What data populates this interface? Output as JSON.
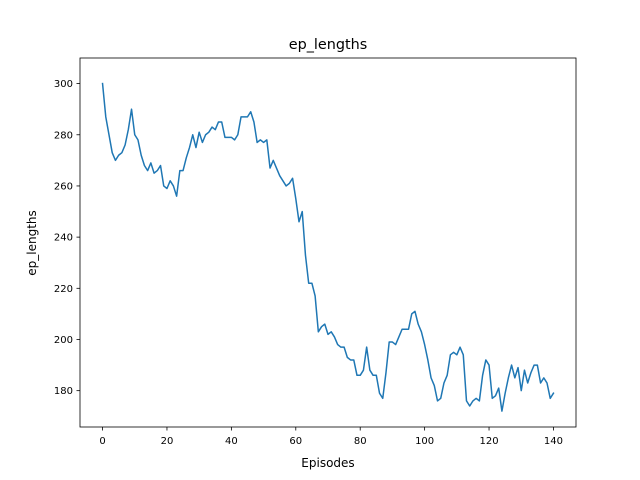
{
  "chart_data": {
    "type": "line",
    "title": "ep_lengths",
    "xlabel": "Episodes",
    "ylabel": "ep_lengths",
    "xlim": [
      -7,
      147
    ],
    "ylim": [
      165.8,
      310
    ],
    "xticks": [
      0,
      20,
      40,
      60,
      80,
      100,
      120,
      140
    ],
    "yticks": [
      180,
      200,
      220,
      240,
      260,
      280,
      300
    ],
    "grid": false,
    "series": [
      {
        "color": "#1f77b4",
        "x": [
          0,
          1,
          2,
          3,
          4,
          5,
          6,
          7,
          8,
          9,
          10,
          11,
          12,
          13,
          14,
          15,
          16,
          17,
          18,
          19,
          20,
          21,
          22,
          23,
          24,
          25,
          26,
          27,
          28,
          29,
          30,
          31,
          32,
          33,
          34,
          35,
          36,
          37,
          38,
          39,
          40,
          41,
          42,
          43,
          44,
          45,
          46,
          47,
          48,
          49,
          50,
          51,
          52,
          53,
          54,
          55,
          56,
          57,
          58,
          59,
          60,
          61,
          62,
          63,
          64,
          65,
          66,
          67,
          68,
          69,
          70,
          71,
          72,
          73,
          74,
          75,
          76,
          77,
          78,
          79,
          80,
          81,
          82,
          83,
          84,
          85,
          86,
          87,
          88,
          89,
          90,
          91,
          92,
          93,
          94,
          95,
          96,
          97,
          98,
          99,
          100,
          101,
          102,
          103,
          104,
          105,
          106,
          107,
          108,
          109,
          110,
          111,
          112,
          113,
          114,
          115,
          116,
          117,
          118,
          119,
          120,
          121,
          122,
          123,
          124,
          125,
          126,
          127,
          128,
          129,
          130,
          131,
          132,
          133,
          134,
          135,
          136,
          137,
          138,
          139,
          140
        ],
        "y": [
          300,
          287,
          280,
          273,
          270,
          272,
          273,
          276,
          282,
          290,
          280,
          278,
          272,
          268,
          266,
          269,
          265,
          266,
          268,
          260,
          259,
          262,
          260,
          256,
          266,
          266,
          271,
          275,
          280,
          275,
          281,
          277,
          280,
          281,
          283,
          282,
          285,
          285,
          279,
          279,
          279,
          278,
          280,
          287,
          287,
          287,
          289,
          285,
          277,
          278,
          277,
          278,
          267,
          270,
          267,
          264,
          262,
          260,
          261,
          263,
          255,
          246,
          250,
          233,
          222,
          222,
          217,
          203,
          205,
          206,
          202,
          203,
          201,
          198,
          197,
          197,
          193,
          192,
          192,
          186,
          186,
          188,
          197,
          188,
          186,
          186,
          179,
          177,
          187,
          199,
          199,
          198,
          201,
          204,
          204,
          204,
          210,
          211,
          206,
          203,
          198,
          192,
          185,
          182,
          176,
          177,
          183,
          186,
          194,
          195,
          194,
          197,
          194,
          176,
          174,
          176,
          177,
          176,
          186,
          192,
          190,
          177,
          178,
          181,
          172,
          179,
          185,
          190,
          185,
          189,
          180,
          188,
          183,
          187,
          190,
          190,
          183,
          185,
          183,
          177,
          179
        ]
      }
    ]
  }
}
